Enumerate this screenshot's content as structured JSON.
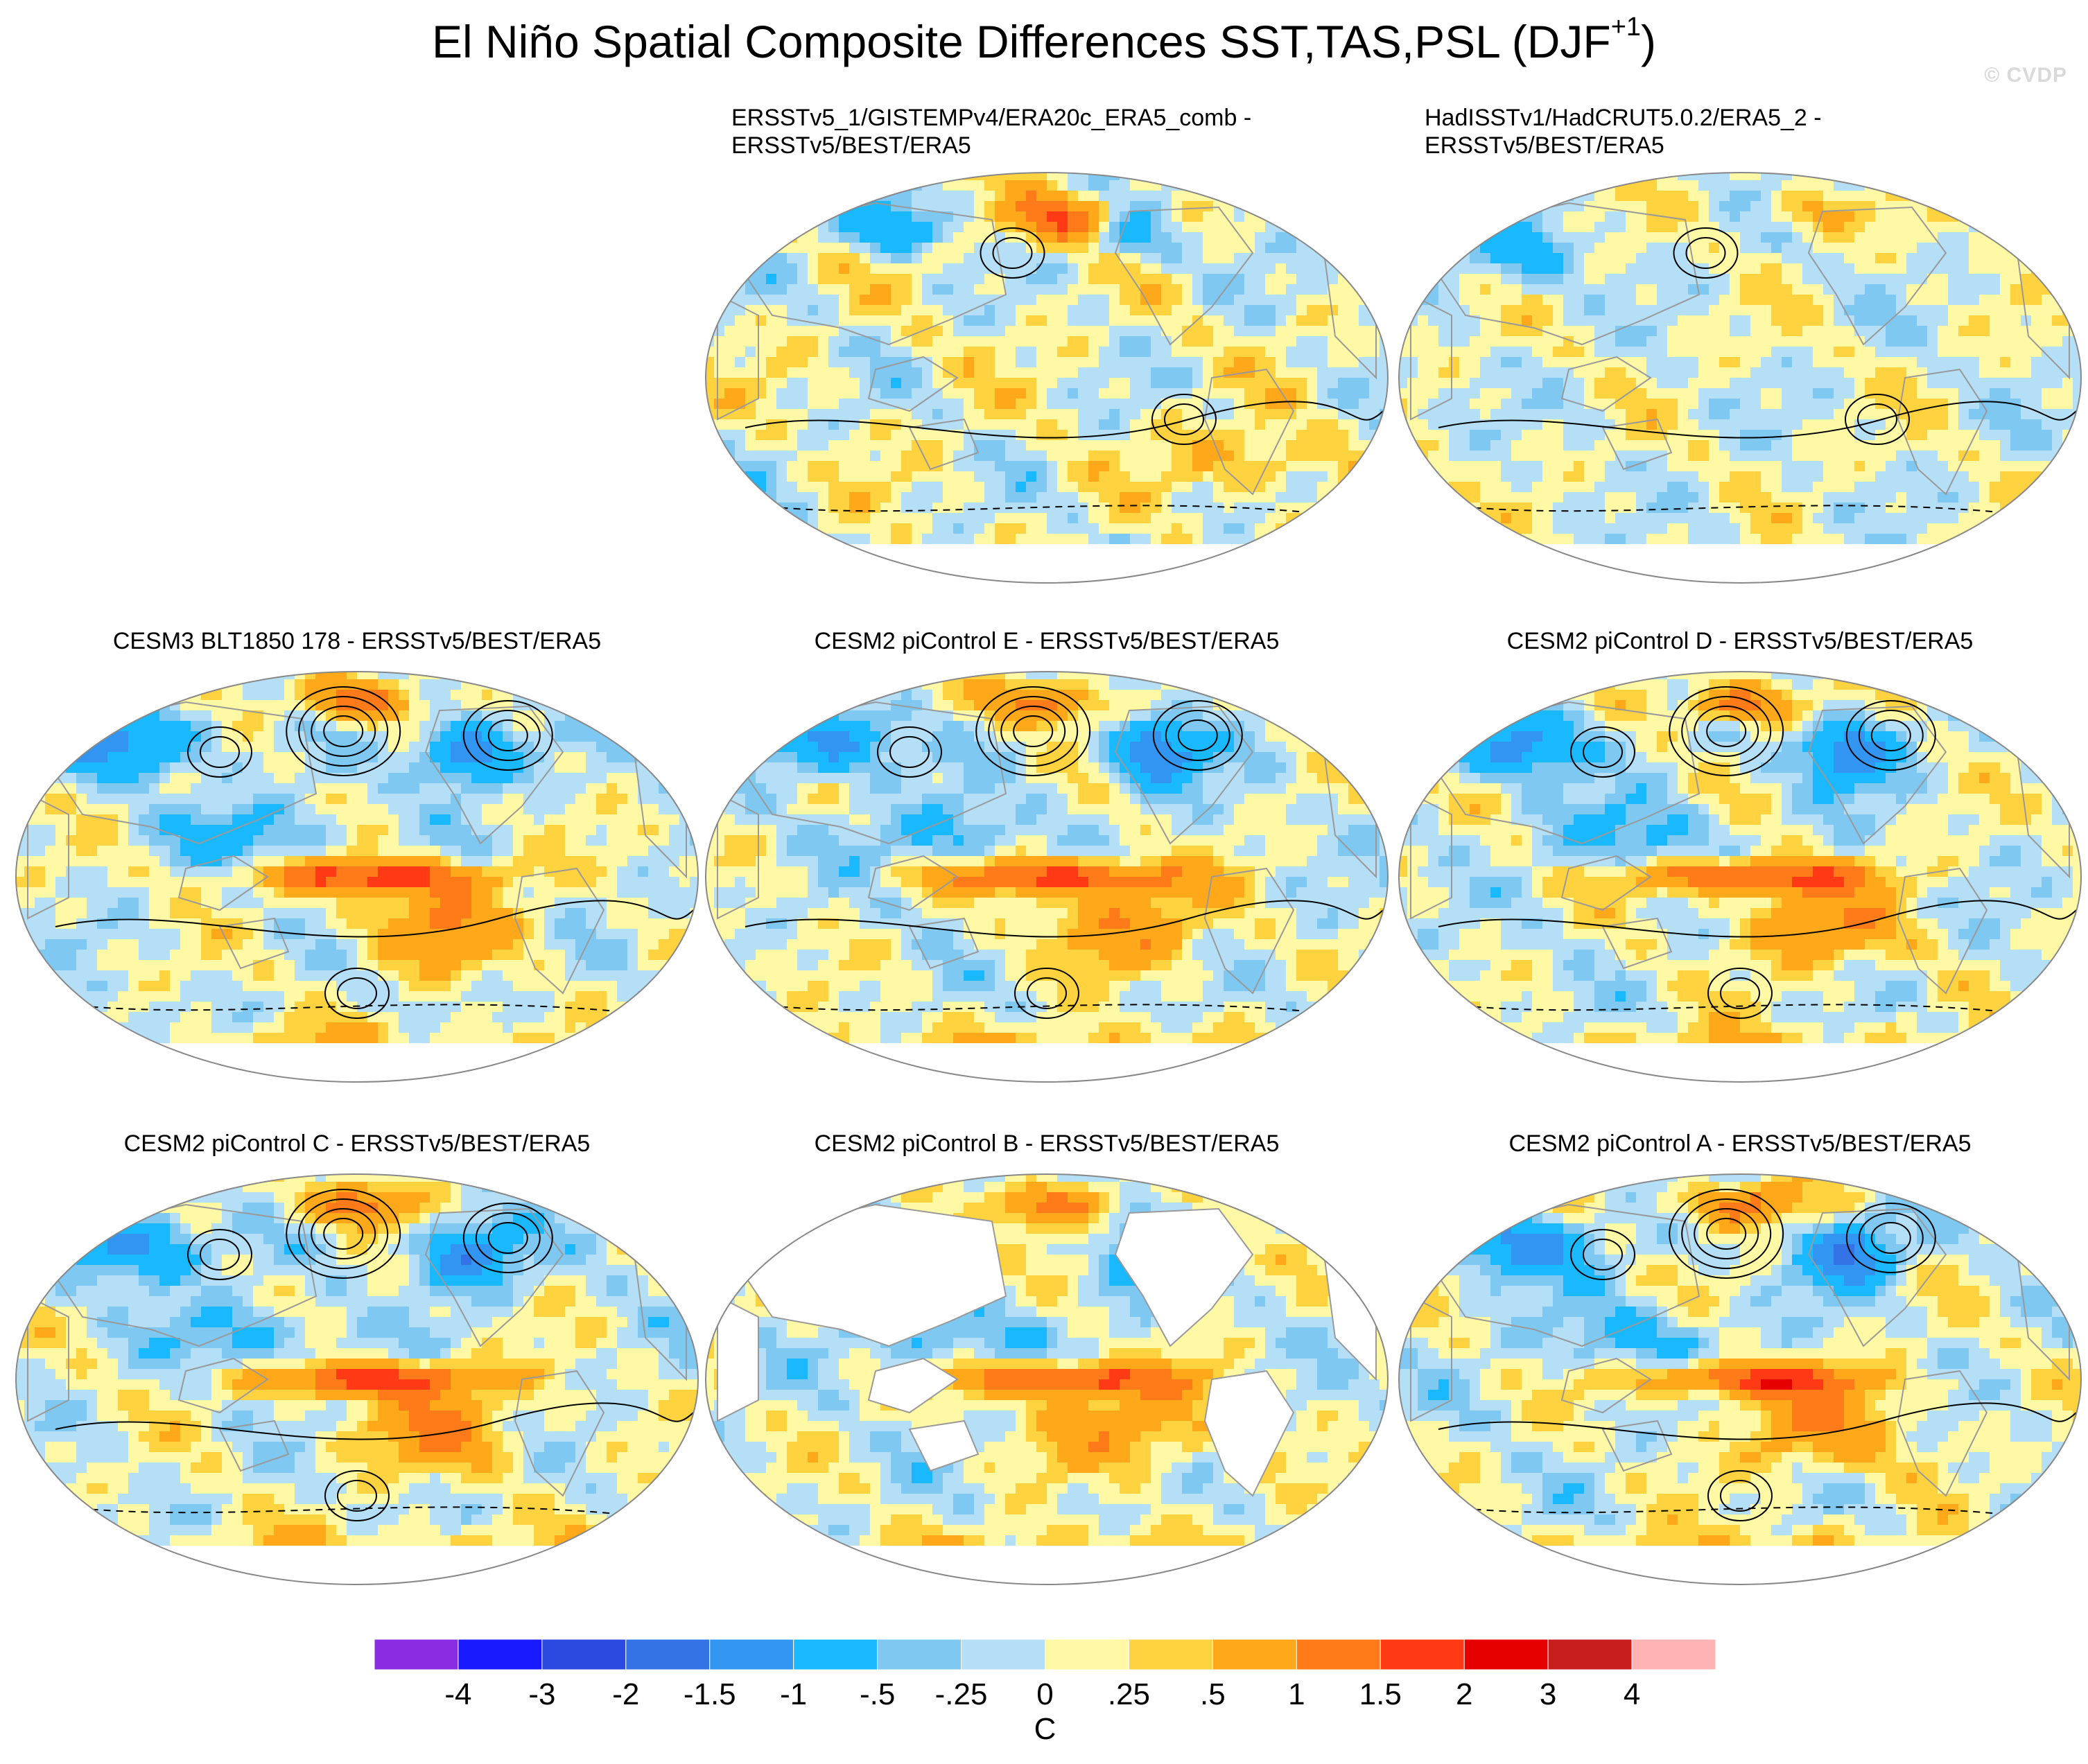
{
  "title": {
    "main": "El Niño Spatial Composite Differences SST,TAS,PSL (DJF",
    "superscript": "+1",
    "closing": ")"
  },
  "watermark": "© CVDP",
  "colors": {
    "palette": [
      "#8b2be2",
      "#1a1aff",
      "#2b4ae0",
      "#3373e6",
      "#3395f2",
      "#1ab8ff",
      "#7ec8f2",
      "#b4dff7",
      "#fff8a5",
      "#ffd23f",
      "#ffa91a",
      "#ff7b1a",
      "#ff3a14",
      "#e60000",
      "#c81e1e",
      "#ffb3b3"
    ],
    "land_outline": "#999999",
    "contour": "#000000"
  },
  "chart_data": {
    "type": "heatmap",
    "projection": "Robinson (global)",
    "fields": "SST, TAS (shaded), PSL (contours)",
    "season": "DJF+1",
    "colorbar": {
      "label": "C",
      "tick_labels": [
        "-4",
        "-3",
        "-2",
        "-1.5",
        "-1",
        "-.5",
        "-.25",
        "0",
        ".25",
        ".5",
        "1",
        "1.5",
        "2",
        "3",
        "4"
      ],
      "levels": [
        -4,
        -3,
        -2,
        -1.5,
        -1,
        -0.5,
        -0.25,
        0,
        0.25,
        0.5,
        1,
        1.5,
        2,
        3,
        4
      ]
    },
    "panels": [
      {
        "id": "obs1",
        "row": 0,
        "col": 1,
        "title_line1": "ERSSTv5_1/GISTEMPv4/ERA20c_ERA5_comb -",
        "title_line2": "ERSSTv5/BEST/ERA5",
        "pattern": "obs1",
        "contours": true,
        "land_fill": true
      },
      {
        "id": "obs2",
        "row": 0,
        "col": 2,
        "title_line1": "HadISSTv1/HadCRUT5.0.2/ERA5_2 -",
        "title_line2": "ERSSTv5/BEST/ERA5",
        "pattern": "obs2",
        "contours": true,
        "land_fill": true
      },
      {
        "id": "cesm3",
        "row": 1,
        "col": 0,
        "title_line1": "CESM3 BLT1850 178 - ERSSTv5/BEST/ERA5",
        "title_line2": "",
        "pattern": "model",
        "contours": true,
        "land_fill": true
      },
      {
        "id": "pice",
        "row": 1,
        "col": 1,
        "title_line1": "CESM2 piControl E - ERSSTv5/BEST/ERA5",
        "title_line2": "",
        "pattern": "model",
        "contours": true,
        "land_fill": true
      },
      {
        "id": "picd",
        "row": 1,
        "col": 2,
        "title_line1": "CESM2 piControl D - ERSSTv5/BEST/ERA5",
        "title_line2": "",
        "pattern": "model",
        "contours": true,
        "land_fill": true
      },
      {
        "id": "picc",
        "row": 2,
        "col": 0,
        "title_line1": "CESM2 piControl C - ERSSTv5/BEST/ERA5",
        "title_line2": "",
        "pattern": "model",
        "contours": true,
        "land_fill": true
      },
      {
        "id": "picb",
        "row": 2,
        "col": 1,
        "title_line1": "CESM2 piControl B - ERSSTv5/BEST/ERA5",
        "title_line2": "",
        "pattern": "model",
        "contours": false,
        "land_fill": false
      },
      {
        "id": "pica",
        "row": 2,
        "col": 2,
        "title_line1": "CESM2 piControl A - ERSSTv5/BEST/ERA5",
        "title_line2": "",
        "pattern": "model",
        "contours": true,
        "land_fill": true
      }
    ]
  }
}
